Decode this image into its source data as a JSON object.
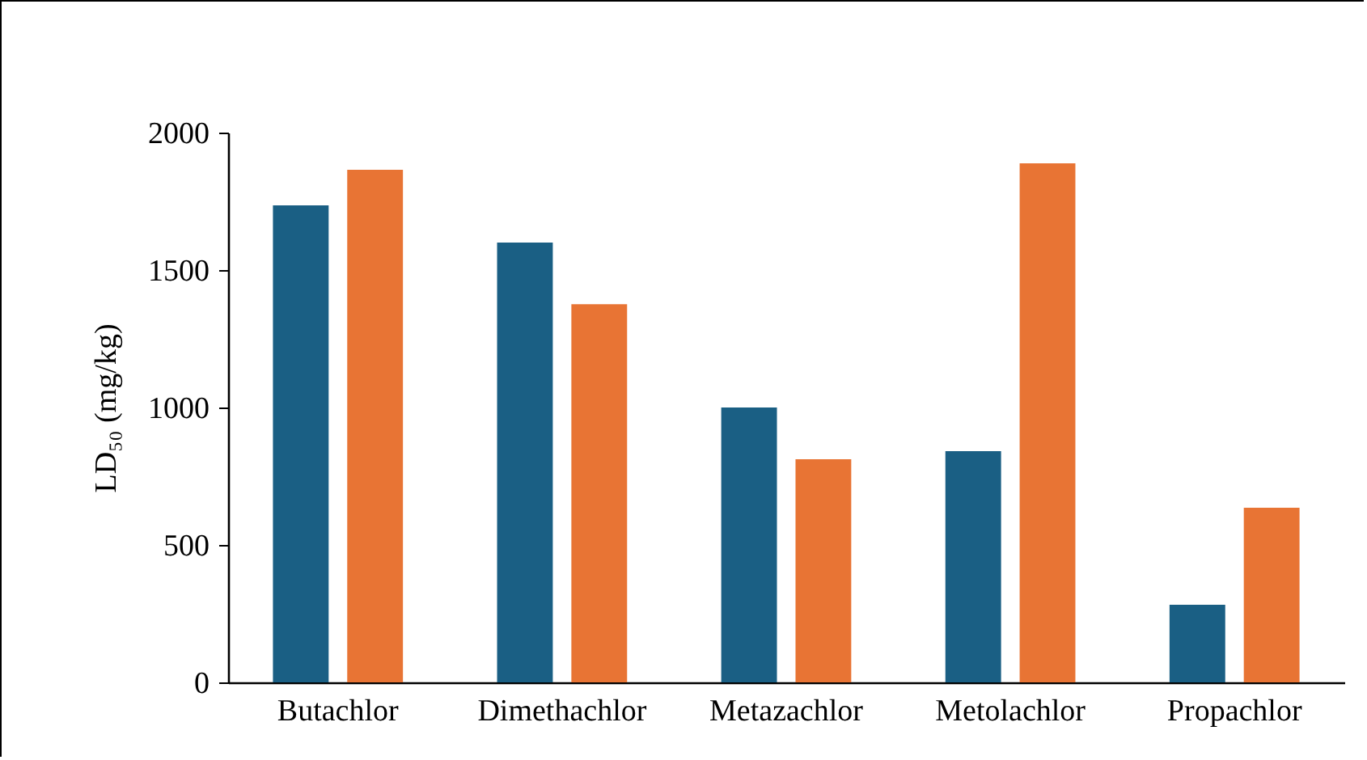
{
  "chart_data": {
    "type": "bar",
    "ylabel": "LD₅₀ (mg/kg)",
    "categories": [
      "Butachlor",
      "Dimethachlor",
      "Metazachlor",
      "Metolachlor",
      "Propachlor"
    ],
    "series": [
      {
        "color": "#1a5f84",
        "values": [
          1735,
          1600,
          1000,
          841,
          282
        ]
      },
      {
        "color": "#e87434",
        "values": [
          1865,
          1376,
          812,
          1888,
          635
        ]
      }
    ],
    "ylim": [
      0,
      2000
    ],
    "yticks": [
      0,
      500,
      1000,
      1500,
      2000
    ],
    "grid": false
  }
}
